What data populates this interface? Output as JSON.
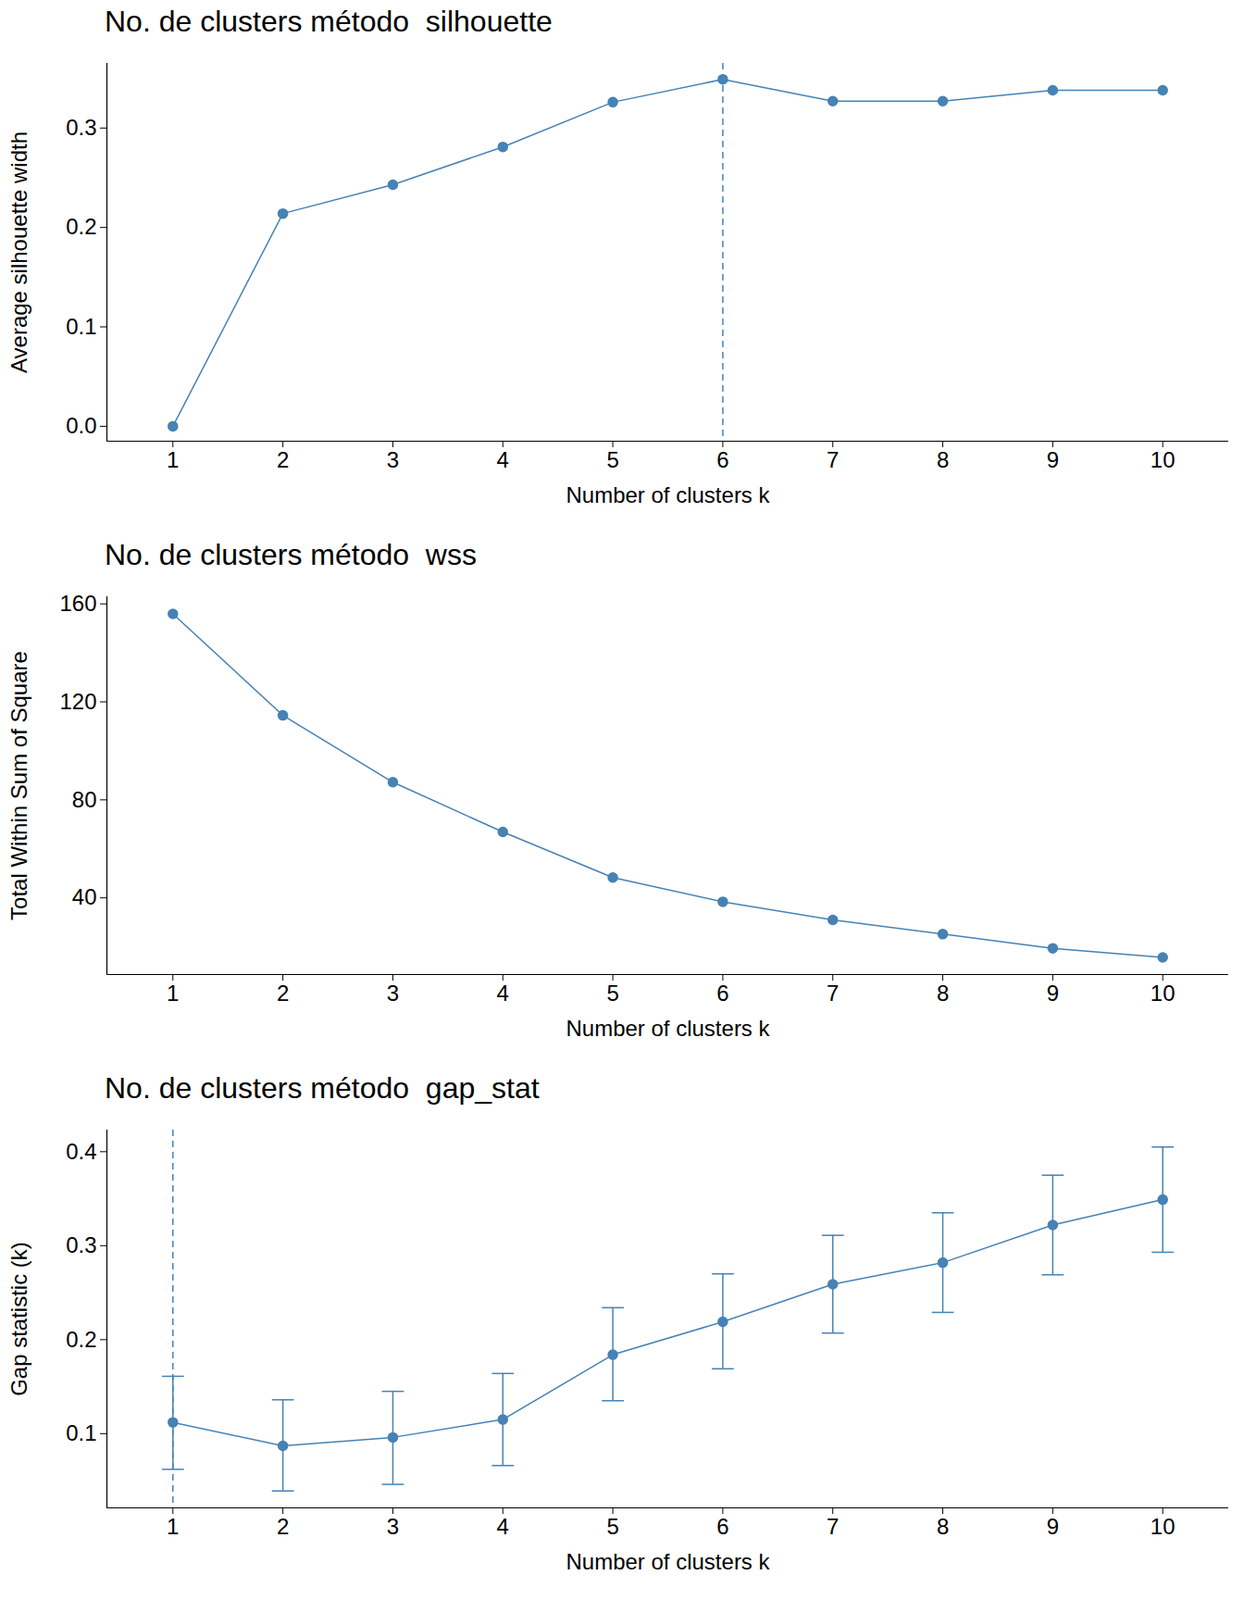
{
  "chart_data": [
    {
      "type": "line",
      "title": "No. de clusters método  silhouette",
      "x_label": "Number of clusters k",
      "y_label": "Average silhouette width",
      "x": [
        1,
        2,
        3,
        4,
        5,
        6,
        7,
        8,
        9,
        10
      ],
      "values": [
        0,
        0.214,
        0.243,
        0.281,
        0.326,
        0.349,
        0.327,
        0.327,
        0.338,
        0.338
      ],
      "reference_line_x": 6,
      "color": "#4682b4",
      "marker": "circle",
      "grid": false,
      "xlim": [
        0.4,
        10.6
      ],
      "xticks": [
        1,
        2,
        3,
        4,
        5,
        6,
        7,
        8,
        9,
        10
      ],
      "ylim": [
        -0.015,
        0.365
      ],
      "yticks": [
        {
          "value": 0,
          "label": "0.0"
        },
        0.1,
        0.2,
        0.3
      ]
    },
    {
      "type": "line",
      "title": "No. de clusters método  wss",
      "x_label": "Number of clusters k",
      "y_label": "Total Within Sum of Square",
      "x": [
        1,
        2,
        3,
        4,
        5,
        6,
        7,
        8,
        9,
        10
      ],
      "values": [
        155.9,
        114.5,
        87.2,
        66.9,
        48.3,
        38.4,
        31.0,
        25.2,
        19.4,
        15.7
      ],
      "color": "#4682b4",
      "marker": "circle",
      "grid": false,
      "xlim": [
        0.4,
        10.6
      ],
      "xticks": [
        1,
        2,
        3,
        4,
        5,
        6,
        7,
        8,
        9,
        10
      ],
      "ylim": [
        8.7,
        162.9
      ],
      "yticks": [
        40,
        80,
        120,
        160
      ]
    },
    {
      "type": "line",
      "title": "No. de clusters método  gap_stat",
      "x_label": "Number of clusters k",
      "y_label": "Gap statistic (k)",
      "x": [
        1,
        2,
        3,
        4,
        5,
        6,
        7,
        8,
        9,
        10
      ],
      "values": [
        0.112,
        0.087,
        0.096,
        0.115,
        0.184,
        0.219,
        0.259,
        0.282,
        0.322,
        0.349
      ],
      "lower": [
        0.062,
        0.039,
        0.046,
        0.066,
        0.135,
        0.169,
        0.207,
        0.229,
        0.269,
        0.293
      ],
      "upper": [
        0.161,
        0.136,
        0.145,
        0.164,
        0.234,
        0.27,
        0.311,
        0.335,
        0.375,
        0.405
      ],
      "reference_line_x": 1,
      "color": "#4682b4",
      "marker": "circle",
      "grid": false,
      "xlim": [
        0.4,
        10.6
      ],
      "xticks": [
        1,
        2,
        3,
        4,
        5,
        6,
        7,
        8,
        9,
        10
      ],
      "ylim": [
        0.021,
        0.423
      ],
      "yticks": [
        0.1,
        0.2,
        0.3,
        0.4
      ]
    }
  ]
}
